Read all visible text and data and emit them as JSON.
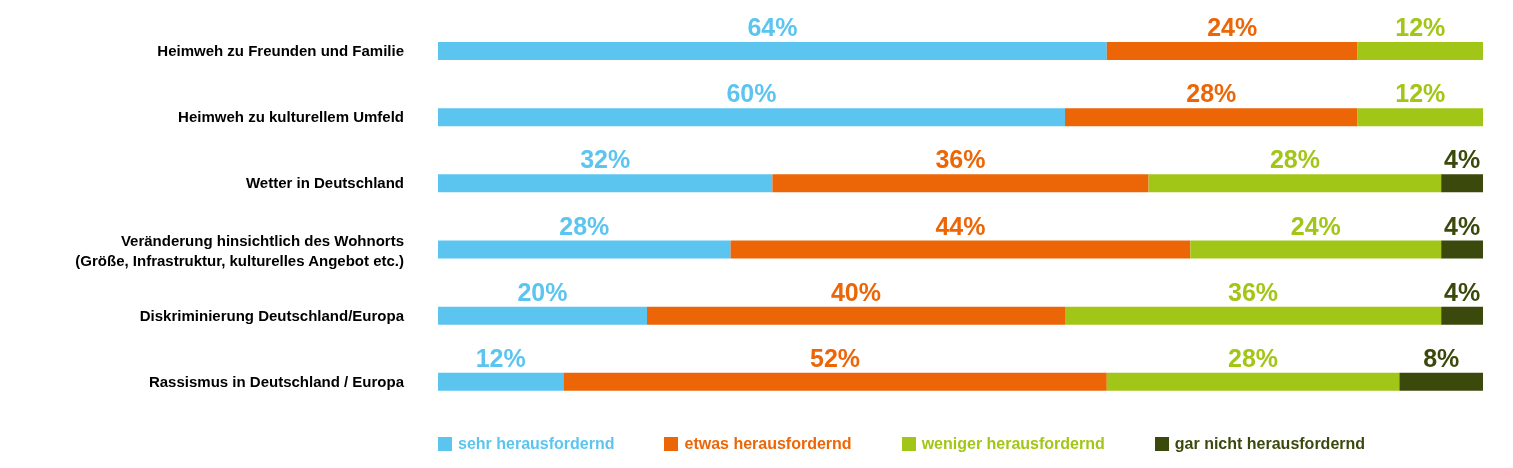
{
  "chart_data": {
    "type": "bar",
    "orientation": "horizontal",
    "stacked": true,
    "categories": [
      "Heimweh zu Freunden und Familie",
      "Heimweh zu kulturellem Umfeld",
      "Wetter in Deutschland",
      "Veränderung hinsichtlich des Wohnorts\n(Größe, Infrastruktur, kulturelles Angebot etc.)",
      "Diskriminierung Deutschland/Europa",
      "Rassismus in Deutschland / Europa"
    ],
    "series": [
      {
        "name": "sehr herausfordernd",
        "color": "#5bc5f0",
        "values": [
          64,
          60,
          32,
          28,
          20,
          12
        ],
        "value_labels": [
          "64%",
          "60%",
          "32%",
          "28%",
          "20%",
          "12%"
        ]
      },
      {
        "name": "etwas herausfordernd",
        "color": "#ec6608",
        "values": [
          24,
          28,
          36,
          44,
          40,
          52
        ],
        "value_labels": [
          "24%",
          "28%",
          "36%",
          "44%",
          "40%",
          "52%"
        ]
      },
      {
        "name": "weniger herausfordernd",
        "color": "#a2c617",
        "values": [
          12,
          12,
          28,
          24,
          36,
          28
        ],
        "value_labels": [
          "12%",
          "12%",
          "28%",
          "24%",
          "36%",
          "28%"
        ]
      },
      {
        "name": "gar nicht herausfordernd",
        "color": "#3b4a0c",
        "values": [
          null,
          null,
          4,
          4,
          4,
          8
        ],
        "value_labels": [
          null,
          null,
          "4%",
          "4%",
          "4%",
          "8%"
        ]
      }
    ],
    "xlim": [
      0,
      100
    ],
    "tick_labels": "y",
    "legend": "bottom"
  }
}
